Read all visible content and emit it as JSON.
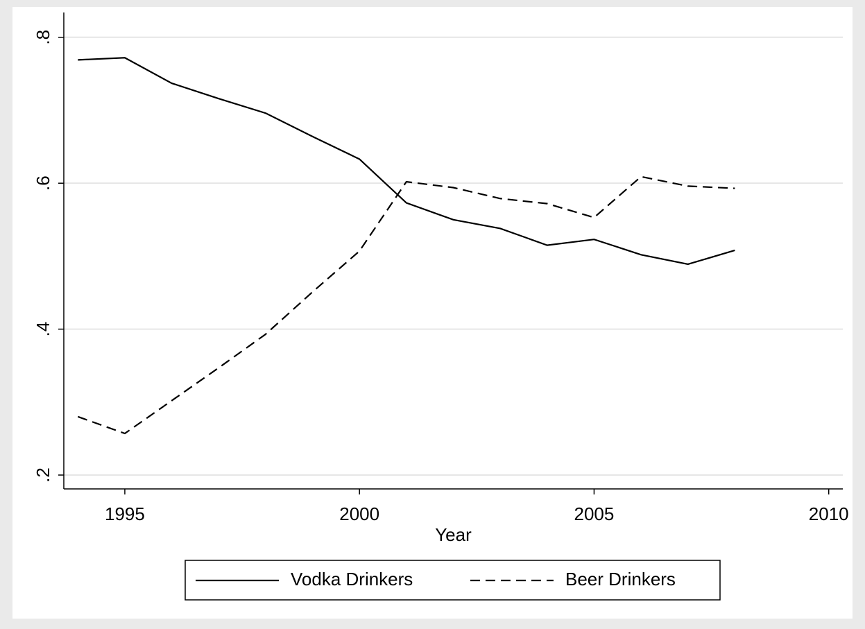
{
  "chart_data": {
    "type": "line",
    "x_label": "Year",
    "x": [
      1994,
      1995,
      1996,
      1997,
      1998,
      1999,
      2000,
      2001,
      2002,
      2003,
      2004,
      2005,
      2006,
      2007,
      2008
    ],
    "series": [
      {
        "name": "Vodka Drinkers",
        "color": "#000000",
        "dash": "solid",
        "values": [
          0.769,
          0.772,
          0.737,
          0.716,
          0.696,
          0.664,
          0.633,
          0.573,
          0.55,
          0.538,
          0.515,
          0.523,
          0.502,
          0.489,
          0.508
        ]
      },
      {
        "name": "Beer Drinkers",
        "color": "#000000",
        "dash": "dashed",
        "values": [
          0.28,
          0.257,
          0.302,
          0.347,
          0.393,
          0.451,
          0.507,
          0.602,
          0.594,
          0.579,
          0.572,
          0.553,
          0.609,
          0.596,
          0.593
        ]
      }
    ],
    "xlim": [
      1993.7,
      2010.3
    ],
    "xticks": [
      1995,
      2000,
      2005,
      2010
    ],
    "ylim": [
      0.181,
      0.834
    ],
    "yticks": [
      {
        "value": 0.2,
        "label": ".2"
      },
      {
        "value": 0.4,
        "label": ".4"
      },
      {
        "value": 0.6,
        "label": ".6"
      },
      {
        "value": 0.8,
        "label": ".8"
      }
    ],
    "grid": true,
    "legend": "bottom"
  }
}
